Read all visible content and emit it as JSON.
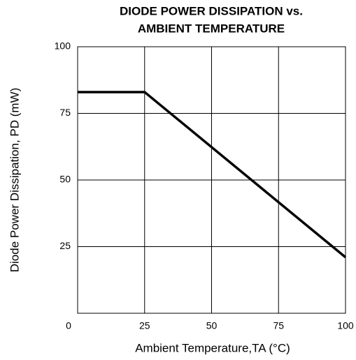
{
  "chart_data": {
    "type": "line",
    "title": [
      "DIODE POWER DISSIPATION vs.",
      "AMBIENT TEMPERATURE"
    ],
    "x_label": "Ambient Temperature,TA (°C)",
    "y_label": "Diode Power Dissipation, PD (mW)",
    "x": [
      0,
      25,
      100
    ],
    "series": [
      {
        "name": null,
        "color": "#000000",
        "values": [
          83,
          83,
          21
        ]
      }
    ],
    "xlim": [
      0,
      100
    ],
    "xticks": [
      0,
      25,
      50,
      75,
      100
    ],
    "ylim": [
      0,
      100
    ],
    "yticks": [
      25,
      50,
      75,
      100
    ],
    "grid": true
  }
}
